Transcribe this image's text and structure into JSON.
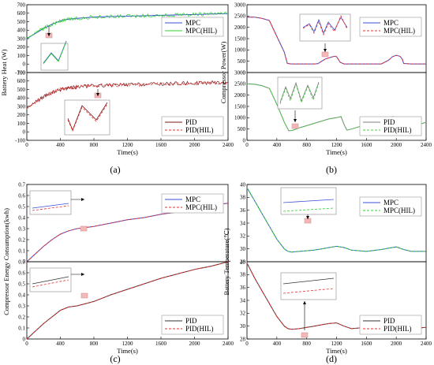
{
  "panel_labels": [
    "(a)",
    "(b)",
    "(c)",
    "(d)"
  ],
  "colors": {
    "mpc": "#3b4fd8",
    "mpc_hil_a": "#2fd32f",
    "mpc_hil": "#e53030",
    "pid": "#333333",
    "pid_hil_a": "#e53030",
    "pid_hil_b": "#44cc44",
    "pid_a": "#7a1a1a",
    "pid_b": "#7f7f7f",
    "zoom_box": "#f4b8b8"
  },
  "chart_data": [
    {
      "id": "a-top",
      "type": "line",
      "ylabel": "Battery Heat (W)",
      "xlim": [
        0,
        2400
      ],
      "ylim": [
        -100,
        700
      ],
      "yticks": [
        -100,
        0,
        100,
        200,
        300,
        400,
        500,
        600,
        700
      ],
      "xticks": [],
      "series": [
        {
          "name": "MPC",
          "x": [
            0,
            100,
            200,
            300,
            400,
            500,
            600,
            800,
            1000,
            1200,
            1400,
            1600,
            1800,
            2000,
            2200,
            2400
          ],
          "y": [
            300,
            360,
            420,
            470,
            510,
            530,
            540,
            555,
            560,
            565,
            570,
            575,
            580,
            585,
            590,
            595
          ]
        },
        {
          "name": "MPC(HIL)",
          "x": [
            0,
            100,
            200,
            300,
            400,
            500,
            600,
            800,
            1000,
            1200,
            1400,
            1600,
            1800,
            2000,
            2200,
            2400
          ],
          "y": [
            300,
            360,
            420,
            470,
            510,
            530,
            540,
            555,
            560,
            565,
            570,
            575,
            580,
            585,
            590,
            595
          ]
        }
      ]
    },
    {
      "id": "a-bottom",
      "type": "line",
      "xlabel": "Time(s)",
      "xlim": [
        0,
        2400
      ],
      "ylim": [
        -100,
        700
      ],
      "yticks": [
        -100,
        0,
        100,
        200,
        300,
        400,
        500,
        600,
        700
      ],
      "xticks": [
        0,
        400,
        800,
        1200,
        1600,
        2000,
        2400
      ],
      "series": [
        {
          "name": "PID",
          "x": [
            0,
            100,
            200,
            300,
            400,
            500,
            600,
            800,
            1000,
            1200,
            1400,
            1600,
            1800,
            2000,
            2200,
            2400
          ],
          "y": [
            280,
            350,
            410,
            460,
            500,
            520,
            530,
            545,
            550,
            555,
            560,
            565,
            570,
            575,
            580,
            585
          ]
        },
        {
          "name": "PID(HIL)",
          "x": [
            0,
            100,
            200,
            300,
            400,
            500,
            600,
            800,
            1000,
            1200,
            1400,
            1600,
            1800,
            2000,
            2200,
            2400
          ],
          "y": [
            280,
            350,
            410,
            460,
            500,
            520,
            530,
            545,
            550,
            555,
            560,
            565,
            570,
            575,
            580,
            585
          ]
        }
      ]
    },
    {
      "id": "b-top",
      "type": "line",
      "ylabel": "Compressor Power(W)",
      "xlim": [
        0,
        2400
      ],
      "ylim": [
        0,
        3000
      ],
      "yticks": [
        0,
        500,
        1000,
        1500,
        2000,
        2500,
        3000
      ],
      "xticks": [],
      "series": [
        {
          "name": "MPC",
          "x": [
            0,
            100,
            200,
            300,
            400,
            500,
            540,
            600,
            700,
            800,
            900,
            950,
            1000,
            1050,
            1100,
            1150,
            1180,
            1200,
            1250,
            1300,
            1400,
            1600,
            1800,
            1900,
            1950,
            2000,
            2050,
            2080,
            2100,
            2200,
            2400
          ],
          "y": [
            2450,
            2450,
            2400,
            2300,
            1600,
            900,
            400,
            380,
            380,
            380,
            380,
            390,
            500,
            600,
            650,
            700,
            720,
            700,
            450,
            380,
            380,
            380,
            380,
            550,
            700,
            760,
            720,
            600,
            400,
            380,
            380
          ]
        },
        {
          "name": "MPC(HIL)",
          "x": [
            0,
            100,
            200,
            300,
            400,
            500,
            540,
            600,
            700,
            800,
            900,
            950,
            1000,
            1050,
            1100,
            1150,
            1180,
            1200,
            1250,
            1300,
            1400,
            1600,
            1800,
            1900,
            1950,
            2000,
            2050,
            2080,
            2100,
            2200,
            2400
          ],
          "y": [
            2450,
            2450,
            2400,
            2300,
            1600,
            900,
            400,
            380,
            380,
            380,
            380,
            390,
            500,
            600,
            650,
            700,
            720,
            700,
            450,
            380,
            380,
            380,
            380,
            550,
            700,
            760,
            720,
            600,
            400,
            380,
            380
          ]
        }
      ]
    },
    {
      "id": "b-bottom",
      "type": "line",
      "xlabel": "Time(s)",
      "xlim": [
        0,
        2400
      ],
      "ylim": [
        0,
        3000
      ],
      "yticks": [
        0,
        500,
        1000,
        1500,
        2000,
        2500,
        3000
      ],
      "xticks": [
        0,
        400,
        800,
        1200,
        1600,
        2000,
        2400
      ],
      "series": [
        {
          "name": "PID",
          "x": [
            0,
            100,
            200,
            300,
            400,
            500,
            560,
            620,
            700,
            800,
            900,
            1000,
            1100,
            1200,
            1260,
            1300,
            1340,
            1400,
            1500,
            1600,
            1700,
            1800,
            1900,
            1960,
            2000,
            2050,
            2100,
            2200,
            2300,
            2400
          ],
          "y": [
            2500,
            2480,
            2420,
            2300,
            1600,
            800,
            420,
            450,
            550,
            650,
            750,
            850,
            950,
            1000,
            1050,
            700,
            450,
            500,
            600,
            700,
            800,
            900,
            1000,
            1050,
            700,
            430,
            500,
            600,
            700,
            800
          ]
        },
        {
          "name": "PID(HIL)",
          "x": [
            0,
            100,
            200,
            300,
            400,
            500,
            560,
            620,
            700,
            800,
            900,
            1000,
            1100,
            1200,
            1260,
            1300,
            1340,
            1400,
            1500,
            1600,
            1700,
            1800,
            1900,
            1960,
            2000,
            2050,
            2100,
            2200,
            2300,
            2400
          ],
          "y": [
            2500,
            2480,
            2420,
            2300,
            1600,
            800,
            420,
            450,
            550,
            650,
            750,
            850,
            950,
            1000,
            1050,
            700,
            450,
            500,
            600,
            700,
            800,
            900,
            1000,
            1050,
            700,
            430,
            500,
            600,
            700,
            800
          ]
        }
      ]
    },
    {
      "id": "c-top",
      "type": "line",
      "ylabel": "Compressor Energy Consumption(kwh)",
      "xlim": [
        0,
        2400
      ],
      "ylim": [
        0,
        0.7
      ],
      "yticks": [
        0.0,
        0.1,
        0.2,
        0.3,
        0.4,
        0.5,
        0.6,
        0.7
      ],
      "xticks": [],
      "series": [
        {
          "name": "MPC",
          "x": [
            0,
            100,
            200,
            300,
            400,
            500,
            600,
            800,
            1000,
            1200,
            1400,
            1600,
            1800,
            2000,
            2200,
            2400
          ],
          "y": [
            0.0,
            0.07,
            0.14,
            0.2,
            0.25,
            0.28,
            0.3,
            0.32,
            0.35,
            0.38,
            0.4,
            0.43,
            0.45,
            0.48,
            0.51,
            0.53
          ]
        },
        {
          "name": "MPC(HIL)",
          "x": [
            0,
            100,
            200,
            300,
            400,
            500,
            600,
            800,
            1000,
            1200,
            1400,
            1600,
            1800,
            2000,
            2200,
            2400
          ],
          "y": [
            0.0,
            0.07,
            0.14,
            0.2,
            0.25,
            0.28,
            0.3,
            0.32,
            0.35,
            0.38,
            0.4,
            0.43,
            0.45,
            0.48,
            0.51,
            0.53
          ]
        }
      ]
    },
    {
      "id": "c-bottom",
      "type": "line",
      "xlabel": "Time(s)",
      "xlim": [
        0,
        2400
      ],
      "ylim": [
        0,
        0.7
      ],
      "yticks": [
        0.0,
        0.1,
        0.2,
        0.3,
        0.4,
        0.5,
        0.6,
        0.7
      ],
      "xticks": [
        0,
        400,
        800,
        1200,
        1600,
        2000,
        2400
      ],
      "series": [
        {
          "name": "PID",
          "x": [
            0,
            100,
            200,
            300,
            400,
            500,
            600,
            800,
            1000,
            1200,
            1400,
            1600,
            1800,
            2000,
            2200,
            2400
          ],
          "y": [
            0.0,
            0.07,
            0.14,
            0.2,
            0.26,
            0.29,
            0.3,
            0.34,
            0.4,
            0.45,
            0.5,
            0.55,
            0.59,
            0.63,
            0.66,
            0.7
          ]
        },
        {
          "name": "PID(HIL)",
          "x": [
            0,
            100,
            200,
            300,
            400,
            500,
            600,
            800,
            1000,
            1200,
            1400,
            1600,
            1800,
            2000,
            2200,
            2400
          ],
          "y": [
            0.0,
            0.07,
            0.14,
            0.2,
            0.26,
            0.29,
            0.3,
            0.34,
            0.4,
            0.45,
            0.5,
            0.55,
            0.59,
            0.63,
            0.66,
            0.7
          ]
        }
      ]
    },
    {
      "id": "d-top",
      "type": "line",
      "ylabel": "Battery Temperature(℃)",
      "xlim": [
        0,
        2400
      ],
      "ylim": [
        28,
        40
      ],
      "yticks": [
        28,
        30,
        32,
        34,
        36,
        38,
        40
      ],
      "xticks": [],
      "series": [
        {
          "name": "MPC",
          "x": [
            0,
            100,
            200,
            300,
            400,
            500,
            550,
            600,
            700,
            800,
            900,
            1000,
            1100,
            1200,
            1300,
            1400,
            1600,
            1800,
            1900,
            2000,
            2100,
            2200,
            2400
          ],
          "y": [
            39.5,
            37.5,
            35.5,
            33.5,
            31.5,
            30.0,
            29.6,
            29.5,
            29.6,
            29.7,
            29.8,
            30.0,
            30.2,
            30.4,
            30.2,
            29.8,
            29.6,
            29.9,
            30.1,
            30.3,
            29.9,
            29.6,
            29.6
          ]
        },
        {
          "name": "MPC(HIL)",
          "x": [
            0,
            100,
            200,
            300,
            400,
            500,
            550,
            600,
            700,
            800,
            900,
            1000,
            1100,
            1200,
            1300,
            1400,
            1600,
            1800,
            1900,
            2000,
            2100,
            2200,
            2400
          ],
          "y": [
            39.5,
            37.5,
            35.5,
            33.5,
            31.5,
            30.0,
            29.6,
            29.5,
            29.6,
            29.7,
            29.8,
            30.0,
            30.2,
            30.4,
            30.2,
            29.8,
            29.6,
            29.9,
            30.1,
            30.3,
            29.9,
            29.6,
            29.6
          ]
        }
      ]
    },
    {
      "id": "d-bottom",
      "type": "line",
      "xlabel": "Time(s)",
      "xlim": [
        0,
        2400
      ],
      "ylim": [
        28,
        40
      ],
      "yticks": [
        28,
        30,
        32,
        34,
        36,
        38,
        40
      ],
      "xticks": [
        0,
        400,
        800,
        1200,
        1600,
        2000,
        2400
      ],
      "series": [
        {
          "name": "PID",
          "x": [
            0,
            100,
            200,
            300,
            400,
            500,
            550,
            600,
            700,
            800,
            900,
            1000,
            1100,
            1200,
            1300,
            1400,
            1600,
            1800,
            1900,
            2000,
            2100,
            2200,
            2400
          ],
          "y": [
            39.8,
            37.5,
            35.5,
            33.5,
            31.5,
            30.0,
            29.6,
            29.5,
            29.6,
            29.8,
            30.0,
            30.2,
            30.4,
            30.5,
            30.0,
            29.6,
            29.8,
            30.1,
            30.4,
            30.5,
            29.9,
            29.6,
            29.8
          ]
        },
        {
          "name": "PID(HIL)",
          "x": [
            0,
            100,
            200,
            300,
            400,
            500,
            550,
            600,
            700,
            800,
            900,
            1000,
            1100,
            1200,
            1300,
            1400,
            1600,
            1800,
            1900,
            2000,
            2100,
            2200,
            2400
          ],
          "y": [
            39.8,
            37.5,
            35.5,
            33.5,
            31.5,
            30.0,
            29.6,
            29.5,
            29.6,
            29.8,
            30.0,
            30.2,
            30.4,
            30.5,
            30.0,
            29.6,
            29.8,
            30.1,
            30.4,
            30.5,
            29.9,
            29.6,
            29.8
          ]
        }
      ]
    }
  ]
}
